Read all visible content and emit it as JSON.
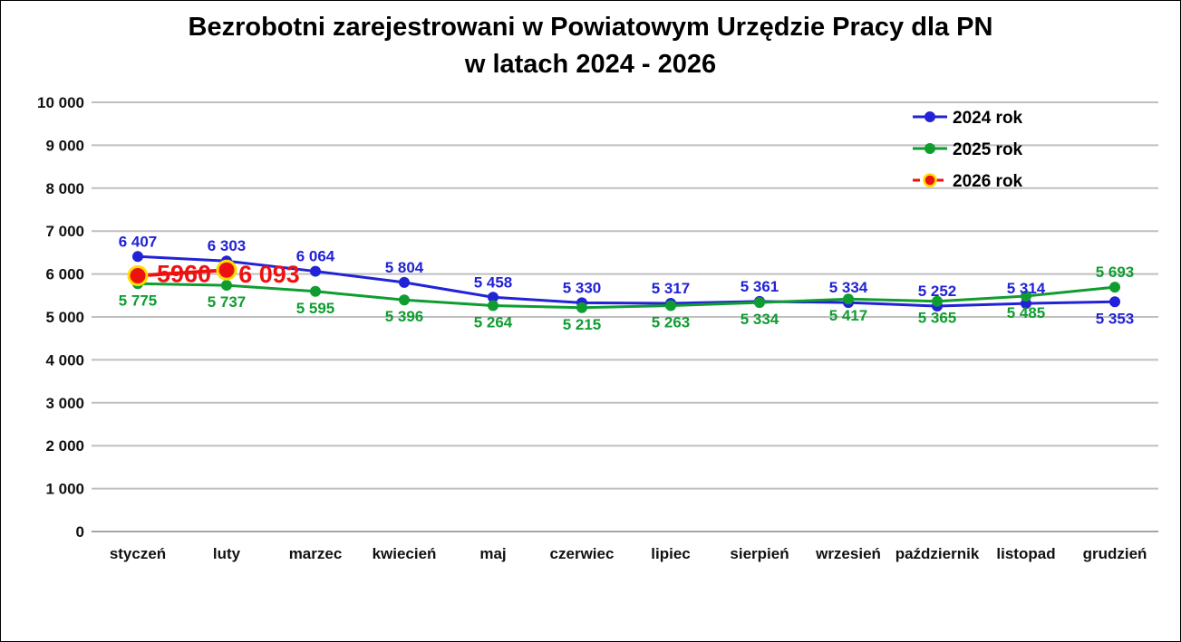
{
  "title": {
    "line1": "Bezrobotni zarejestrowani w Powiatowym Urzędzie Pracy dla PN",
    "line2": "w latach 2024 - 2026"
  },
  "colors": {
    "series_2024": "#2222D6",
    "series_2025": "#0F9D30",
    "series_2026": "#EE1111",
    "series_2026_marker_ring": "#FFDD00",
    "gridline": "#BFBFBF",
    "axis_line": "#A6A6A6",
    "text": "#000000",
    "background": "#FFFFFF"
  },
  "chart_data": {
    "type": "line",
    "title": "Bezrobotni zarejestrowani w Powiatowym Urzędzie Pracy dla PN w latach 2024 - 2026",
    "xlabel": "",
    "ylabel": "",
    "grid": true,
    "legend_position": "top-right",
    "ylim": [
      0,
      10000
    ],
    "ytick_step": 1000,
    "ytick_labels": [
      "0",
      "1 000",
      "2 000",
      "3 000",
      "4 000",
      "5 000",
      "6 000",
      "7 000",
      "8 000",
      "9 000",
      "10 000"
    ],
    "categories": [
      "styczeń",
      "luty",
      "marzec",
      "kwiecień",
      "maj",
      "czerwiec",
      "lipiec",
      "sierpień",
      "wrzesień",
      "październik",
      "listopad",
      "grudzień"
    ],
    "series": [
      {
        "name": "2024 rok",
        "color": "#2222D6",
        "line_dashed": false,
        "legend_dashed": false,
        "line_width": 3,
        "marker_radius": 6,
        "label_font_size": 17,
        "values": [
          6407,
          6303,
          6064,
          5804,
          5458,
          5330,
          5317,
          5361,
          5334,
          5252,
          5314,
          5353
        ],
        "data_labels": [
          "6 407",
          "6 303",
          "6 064",
          "5 804",
          "5 458",
          "5 330",
          "5 317",
          "5 361",
          "5 334",
          "5 252",
          "5 314",
          "5 353"
        ],
        "label_side": [
          "above",
          "above",
          "above",
          "above",
          "above",
          "above",
          "above",
          "above",
          "above",
          "above",
          "above",
          "below"
        ]
      },
      {
        "name": "2025 rok",
        "color": "#0F9D30",
        "line_dashed": false,
        "legend_dashed": false,
        "line_width": 3,
        "marker_radius": 6,
        "label_font_size": 17,
        "values": [
          5775,
          5737,
          5595,
          5396,
          5264,
          5215,
          5263,
          5334,
          5417,
          5365,
          5485,
          5693
        ],
        "data_labels": [
          "5 775",
          "5 737",
          "5 595",
          "5 396",
          "5 264",
          "5 215",
          "5 263",
          "5 334",
          "5 417",
          "5 365",
          "5 485",
          "5 693"
        ],
        "label_side": [
          "below",
          "below",
          "below",
          "below",
          "below",
          "below",
          "below",
          "below",
          "below",
          "below",
          "below",
          "above"
        ]
      },
      {
        "name": "2026 rok",
        "color": "#EE1111",
        "marker_ring": "#FFDD00",
        "line_dashed": false,
        "legend_dashed": true,
        "line_width": 4,
        "marker_radius": 10,
        "label_font_size": 27,
        "values": [
          5960,
          6093,
          null,
          null,
          null,
          null,
          null,
          null,
          null,
          null,
          null,
          null
        ],
        "data_labels": [
          "5960",
          "6 093",
          null,
          null,
          null,
          null,
          null,
          null,
          null,
          null,
          null,
          null
        ],
        "label_side": [
          "custom",
          "custom",
          null,
          null,
          null,
          null,
          null,
          null,
          null,
          null,
          null,
          null
        ],
        "label_offsets": [
          {
            "dx": 51,
            "dy": 7
          },
          {
            "dx": 47,
            "dy": 14
          }
        ]
      }
    ]
  }
}
